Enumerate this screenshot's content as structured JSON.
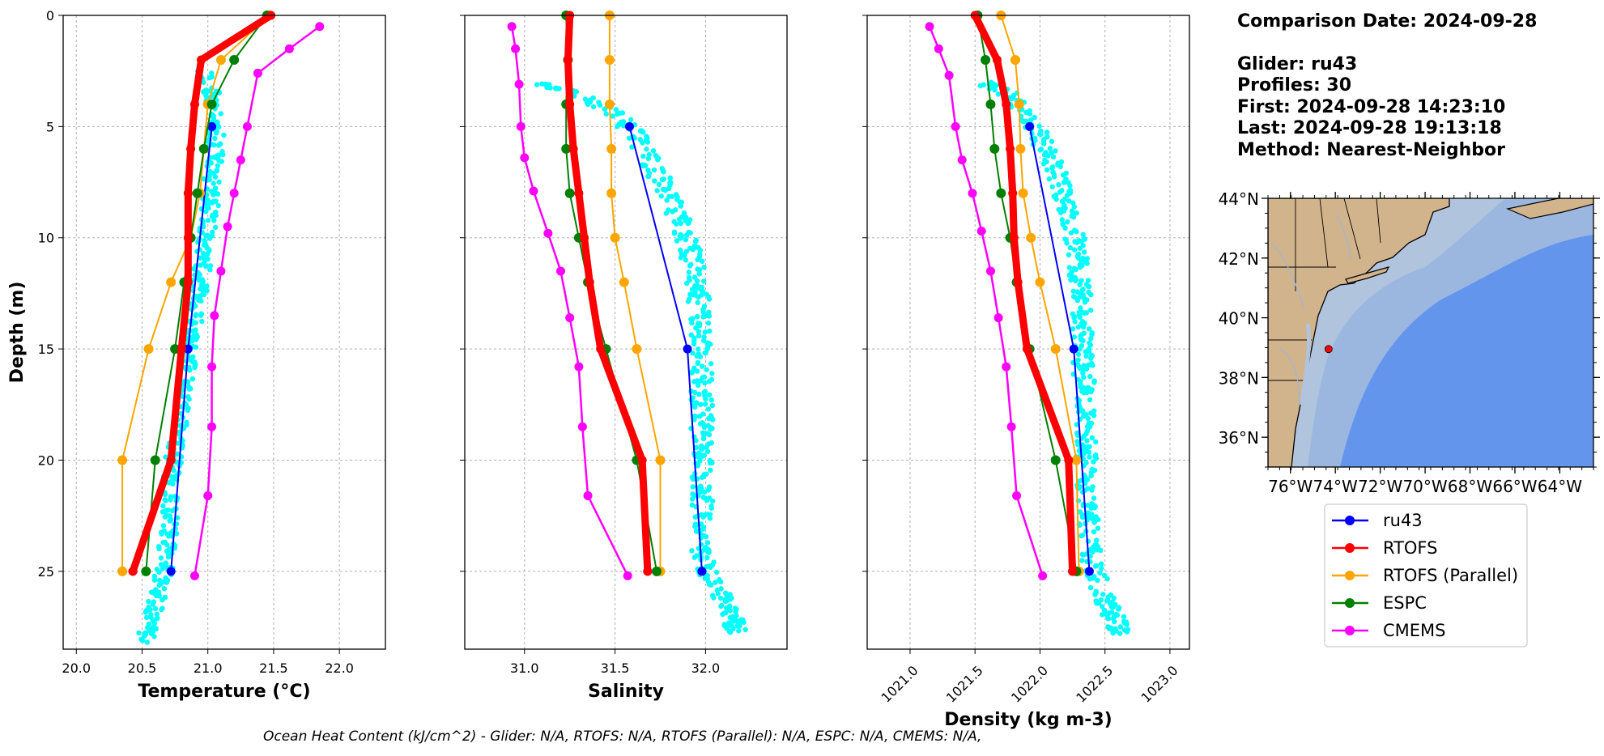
{
  "info": {
    "comparison_date": "Comparison Date: 2024-09-28",
    "glider": "Glider: ru43",
    "profiles": "Profiles: 30",
    "first": "First: 2024-09-28 14:23:10",
    "last": "Last: 2024-09-28 19:13:18",
    "method": "Method: Nearest-Neighbor"
  },
  "footer": "Ocean Heat Content (kJ/cm^2) - Glider: N/A,  RTOFS: N/A,  RTOFS (Parallel): N/A,  ESPC: N/A,  CMEMS: N/A,",
  "colors": {
    "ru43": "#0000ff",
    "RTOFS": "#ff0000",
    "RTOFS (Parallel)": "#ffa500",
    "ESPC": "#008000",
    "CMEMS": "#ff00ff",
    "glider_raw": "#00ffff",
    "land": "#d2b48c",
    "shelf": "#b0c4de",
    "slope": "#9bb7e0",
    "deep": "#6495ed"
  },
  "chart_data": [
    {
      "type": "line",
      "panel": "temperature",
      "xlabel": "Temperature (°C)",
      "ylabel": "Depth (m)",
      "xlim": [
        19.9,
        22.35
      ],
      "ylim": [
        28.5,
        0
      ],
      "xticks": [
        20.0,
        20.5,
        21.0,
        21.5,
        22.0
      ],
      "xtick_labels": [
        "20.0",
        "20.5",
        "21.0",
        "21.5",
        "22.0"
      ],
      "yticks": [
        0,
        5,
        10,
        15,
        20,
        25
      ],
      "ytick_labels": [
        "0",
        "5",
        "10",
        "15",
        "20",
        "25"
      ],
      "grid": true,
      "series": [
        {
          "name": "ru43",
          "x": [
            21.03,
            20.85,
            20.72
          ],
          "y": [
            5,
            15,
            25
          ]
        },
        {
          "name": "RTOFS",
          "x": [
            21.48,
            20.95,
            20.9,
            20.87,
            20.85,
            20.85,
            20.85,
            20.8,
            20.72,
            20.43,
            20.43
          ],
          "y": [
            0,
            2,
            4,
            6,
            8,
            10,
            12,
            15,
            20,
            25,
            25
          ]
        },
        {
          "name": "RTOFS (Parallel)",
          "x": [
            21.47,
            21.1,
            21.0,
            20.97,
            20.94,
            20.87,
            20.72,
            20.55,
            20.35,
            20.35
          ],
          "y": [
            0,
            2,
            4,
            6,
            8,
            10,
            12,
            15,
            20,
            25
          ]
        },
        {
          "name": "ESPC",
          "x": [
            21.45,
            21.2,
            21.03,
            20.97,
            20.92,
            20.87,
            20.82,
            20.75,
            20.6,
            20.53
          ],
          "y": [
            0,
            2,
            4,
            6,
            8,
            10,
            12,
            15,
            20,
            25
          ]
        },
        {
          "name": "CMEMS",
          "x": [
            21.85,
            21.62,
            21.38,
            21.3,
            21.25,
            21.2,
            21.15,
            21.1,
            21.05,
            21.03,
            21.03,
            21.0,
            20.9
          ],
          "y": [
            0.5,
            1.5,
            2.6,
            5,
            6.5,
            8,
            9.5,
            11.5,
            13.5,
            15.8,
            18.5,
            21.6,
            25.2
          ]
        }
      ]
    },
    {
      "type": "line",
      "panel": "salinity",
      "xlabel": "Salinity",
      "xlim": [
        30.67,
        32.45
      ],
      "ylim": [
        28.5,
        0
      ],
      "xticks": [
        31.0,
        31.5,
        32.0
      ],
      "xtick_labels": [
        "31.0",
        "31.5",
        "32.0"
      ],
      "grid": true,
      "series": [
        {
          "name": "ru43",
          "x": [
            31.58,
            31.9,
            31.98
          ],
          "y": [
            5,
            15,
            25
          ]
        },
        {
          "name": "RTOFS",
          "x": [
            31.25,
            31.24,
            31.25,
            31.27,
            31.3,
            31.33,
            31.36,
            31.42,
            31.65,
            31.68,
            31.68
          ],
          "y": [
            0,
            2,
            4,
            6,
            8,
            10,
            12,
            15,
            20,
            25,
            25
          ]
        },
        {
          "name": "RTOFS (Parallel)",
          "x": [
            31.47,
            31.47,
            31.47,
            31.48,
            31.48,
            31.5,
            31.55,
            31.62,
            31.75,
            31.75
          ],
          "y": [
            0,
            2,
            4,
            6,
            8,
            10,
            12,
            15,
            20,
            25
          ]
        },
        {
          "name": "ESPC",
          "x": [
            31.23,
            31.24,
            31.23,
            31.23,
            31.25,
            31.3,
            31.35,
            31.45,
            31.62,
            31.73
          ],
          "y": [
            0,
            2,
            4,
            6,
            8,
            10,
            12,
            15,
            20,
            25
          ]
        },
        {
          "name": "CMEMS",
          "x": [
            30.93,
            30.95,
            30.97,
            30.98,
            31.0,
            31.05,
            31.13,
            31.2,
            31.25,
            31.3,
            31.32,
            31.35,
            31.57
          ],
          "y": [
            0.5,
            1.5,
            3.1,
            5,
            6.4,
            7.9,
            9.8,
            11.5,
            13.6,
            15.8,
            18.5,
            21.6,
            25.2
          ]
        }
      ]
    },
    {
      "type": "line",
      "panel": "density",
      "xlabel": "Density (kg m-3)",
      "xlim": [
        1020.67,
        1023.15
      ],
      "ylim": [
        28.5,
        0
      ],
      "xticks": [
        1021.0,
        1021.5,
        1022.0,
        1022.5,
        1023.0
      ],
      "xtick_labels": [
        "1021.0",
        "1021.5",
        "1022.0",
        "1022.5",
        "1023.0"
      ],
      "grid": true,
      "series": [
        {
          "name": "ru43",
          "x": [
            1021.92,
            1022.26,
            1022.38
          ],
          "y": [
            5,
            15,
            25
          ]
        },
        {
          "name": "RTOFS",
          "x": [
            1021.5,
            1021.67,
            1021.74,
            1021.77,
            1021.79,
            1021.8,
            1021.83,
            1021.9,
            1022.22,
            1022.25,
            1022.25
          ],
          "y": [
            0,
            2,
            4,
            6,
            8,
            10,
            12,
            15,
            20,
            25,
            25
          ]
        },
        {
          "name": "RTOFS (Parallel)",
          "x": [
            1021.7,
            1021.81,
            1021.84,
            1021.85,
            1021.87,
            1021.93,
            1022.0,
            1022.12,
            1022.28,
            1022.3
          ],
          "y": [
            0,
            2,
            4,
            6,
            8,
            10,
            12,
            15,
            20,
            25
          ]
        },
        {
          "name": "ESPC",
          "x": [
            1021.52,
            1021.58,
            1021.62,
            1021.65,
            1021.7,
            1021.77,
            1021.82,
            1021.92,
            1022.12,
            1022.28
          ],
          "y": [
            0,
            2,
            4,
            6,
            8,
            10,
            12,
            15,
            20,
            25
          ]
        },
        {
          "name": "CMEMS",
          "x": [
            1021.15,
            1021.22,
            1021.3,
            1021.35,
            1021.4,
            1021.48,
            1021.55,
            1021.62,
            1021.68,
            1021.74,
            1021.78,
            1021.82,
            1022.02
          ],
          "y": [
            0.5,
            1.5,
            2.7,
            5,
            6.5,
            8,
            9.7,
            11.5,
            13.6,
            15.8,
            18.5,
            21.6,
            25.2
          ]
        }
      ]
    }
  ],
  "glider_scatter": {
    "temperature": {
      "x": [
        20.98,
        21.03,
        21.05,
        21.06,
        21.05,
        21.03,
        21.02,
        21.0,
        20.98,
        20.95,
        20.93,
        20.9,
        20.88,
        20.85,
        20.82,
        20.8,
        20.78,
        20.75,
        20.73,
        20.72,
        20.72,
        20.7,
        20.68,
        20.65,
        20.6,
        20.55,
        20.52
      ],
      "y": [
        2.5,
        3.5,
        4.5,
        5.5,
        6.5,
        7.5,
        8.5,
        9.5,
        10.5,
        11.5,
        12.5,
        13.5,
        14.5,
        15.5,
        16.5,
        17.5,
        18.5,
        19.5,
        20.5,
        21.5,
        22.5,
        23.5,
        24.5,
        25.5,
        26.5,
        27.5,
        28.2
      ],
      "spread": 0.13
    },
    "salinity": {
      "x": [
        31.07,
        31.3,
        31.52,
        31.62,
        31.69,
        31.76,
        31.82,
        31.87,
        31.91,
        31.94,
        31.96,
        31.97,
        31.98,
        31.98,
        31.98,
        31.98,
        31.98,
        31.98,
        31.98,
        31.98,
        31.98,
        31.98,
        31.98,
        32.05,
        32.1,
        32.15,
        32.18
      ],
      "y": [
        3.0,
        3.5,
        4.5,
        5.5,
        6.5,
        7.5,
        8.5,
        9.5,
        10.5,
        11.5,
        12.5,
        13.5,
        14.5,
        15.5,
        16.5,
        17.5,
        18.5,
        19.5,
        20.5,
        21.5,
        22.5,
        23.5,
        24.5,
        25.5,
        26.5,
        27.2,
        27.8
      ],
      "spread": 0.12
    },
    "density": {
      "x": [
        1021.55,
        1021.75,
        1021.9,
        1022.0,
        1022.08,
        1022.15,
        1022.2,
        1022.25,
        1022.28,
        1022.3,
        1022.32,
        1022.33,
        1022.33,
        1022.33,
        1022.34,
        1022.34,
        1022.35,
        1022.35,
        1022.36,
        1022.36,
        1022.37,
        1022.38,
        1022.4,
        1022.45,
        1022.52,
        1022.58,
        1022.62
      ],
      "y": [
        3.0,
        3.5,
        4.5,
        5.5,
        6.5,
        7.5,
        8.5,
        9.5,
        10.5,
        11.5,
        12.5,
        13.5,
        14.5,
        15.5,
        16.5,
        17.5,
        18.5,
        19.5,
        20.5,
        21.5,
        22.5,
        23.5,
        24.5,
        25.5,
        26.5,
        27.2,
        27.8
      ],
      "spread": 0.16
    }
  },
  "map": {
    "lon_range": [
      -77,
      -62.5
    ],
    "lat_range": [
      35,
      44
    ],
    "lat_labels": [
      "44°N",
      "42°N",
      "40°N",
      "38°N",
      "36°N"
    ],
    "lat_values": [
      44,
      42,
      40,
      38,
      36
    ],
    "lon_labels": [
      "76°W",
      "74°W",
      "72°W",
      "70°W",
      "68°W",
      "66°W",
      "64°W"
    ],
    "lon_values": [
      -76,
      -74,
      -72,
      -70,
      -68,
      -66,
      -64
    ],
    "glider_location": {
      "lon": -74.3,
      "lat": 38.95
    }
  },
  "legend": [
    "ru43",
    "RTOFS",
    "RTOFS (Parallel)",
    "ESPC",
    "CMEMS"
  ]
}
